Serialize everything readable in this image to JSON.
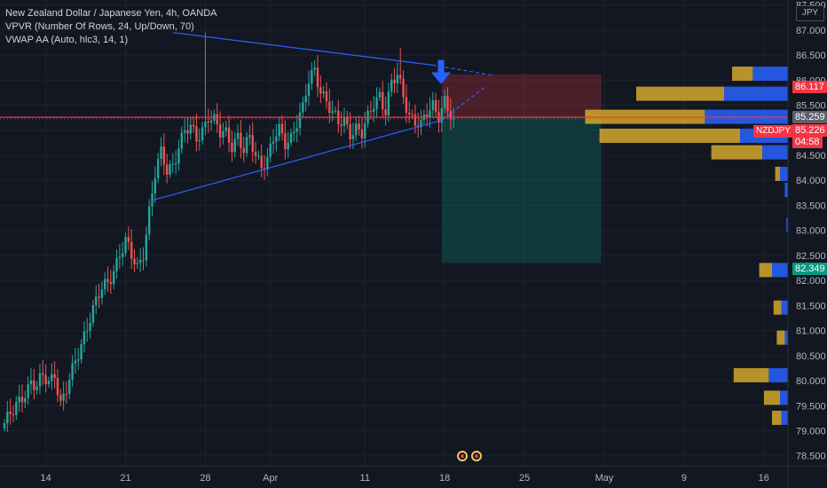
{
  "legend": {
    "title": "New Zealand Dollar / Japanese Yen, 4h, OANDA",
    "vpvr": "VPVR (Number Of Rows, 24, Up/Down, 70)",
    "vwap": "VWAP AA (Auto, hlc3, 14, 1)"
  },
  "currency": "JPY",
  "price_tags": {
    "upper": "86.117",
    "current_line": "85.259",
    "ticker": "NZDJPY",
    "last": "85.226",
    "countdown": "04:58",
    "lower": "82.349"
  },
  "colors": {
    "background": "#131722",
    "up": "#26a69a",
    "down": "#ef5350",
    "trendline": "#2962ff",
    "vp_up": "#2962ff",
    "vp_down": "#d4a82c",
    "stop_zone": "#f23645",
    "target_zone": "#089981"
  },
  "chart_data": {
    "type": "candlestick",
    "symbol": "NZDJPY",
    "interval": "4h",
    "ylim": [
      78.3,
      87.6
    ],
    "y_ticks": [
      78.5,
      79.0,
      79.5,
      80.0,
      80.5,
      81.0,
      81.5,
      82.0,
      82.5,
      83.0,
      83.5,
      84.0,
      84.5,
      85.0,
      85.5,
      86.0,
      86.5,
      87.0,
      87.5
    ],
    "y_tick_labels": [
      "78.500",
      "79.000",
      "79.500",
      "80.000",
      "80.500",
      "81.000",
      "81.500",
      "82.000",
      "82.500",
      "83.000",
      "83.500",
      "84.000",
      "84.500",
      "85.000",
      "85.500",
      "86.000",
      "86.500",
      "87.000",
      "87.500"
    ],
    "x_ticks": [
      "14",
      "21",
      "28",
      "Apr",
      "11",
      "18",
      "25",
      "May",
      "9",
      "16"
    ],
    "x_tick_bar_index": [
      14,
      41,
      68,
      90,
      122,
      149,
      176,
      203,
      230,
      257
    ],
    "close_path": [
      [
        0,
        79.15
      ],
      [
        3,
        79.35
      ],
      [
        6,
        79.7
      ],
      [
        9,
        80.0
      ],
      [
        11,
        79.85
      ],
      [
        13,
        80.05
      ],
      [
        15,
        79.95
      ],
      [
        17,
        80.2
      ],
      [
        19,
        79.55
      ],
      [
        21,
        79.8
      ],
      [
        23,
        80.15
      ],
      [
        25,
        80.55
      ],
      [
        27,
        80.95
      ],
      [
        29,
        81.3
      ],
      [
        31,
        81.55
      ],
      [
        33,
        81.8
      ],
      [
        35,
        81.95
      ],
      [
        37,
        82.25
      ],
      [
        39,
        82.55
      ],
      [
        41,
        82.75
      ],
      [
        43,
        82.45
      ],
      [
        45,
        82.25
      ],
      [
        47,
        82.6
      ],
      [
        49,
        83.4
      ],
      [
        51,
        84.1
      ],
      [
        53,
        84.5
      ],
      [
        55,
        84.2
      ],
      [
        57,
        84.35
      ],
      [
        59,
        84.7
      ],
      [
        61,
        84.95
      ],
      [
        63,
        85.0
      ],
      [
        65,
        84.85
      ],
      [
        67,
        85.05
      ],
      [
        69,
        85.3
      ],
      [
        71,
        85.15
      ],
      [
        73,
        84.9
      ],
      [
        75,
        84.95
      ],
      [
        77,
        84.75
      ],
      [
        79,
        84.9
      ],
      [
        81,
        84.55
      ],
      [
        83,
        84.8
      ],
      [
        85,
        84.5
      ],
      [
        87,
        84.35
      ],
      [
        89,
        84.45
      ],
      [
        91,
        84.8
      ],
      [
        93,
        84.95
      ],
      [
        95,
        84.75
      ],
      [
        97,
        84.9
      ],
      [
        99,
        85.2
      ],
      [
        101,
        85.4
      ],
      [
        103,
        85.95
      ],
      [
        105,
        86.2
      ],
      [
        107,
        85.85
      ],
      [
        109,
        85.6
      ],
      [
        111,
        85.3
      ],
      [
        113,
        85.1
      ],
      [
        115,
        85.2
      ],
      [
        117,
        85.0
      ],
      [
        119,
        85.05
      ],
      [
        121,
        84.9
      ],
      [
        123,
        85.2
      ],
      [
        125,
        85.55
      ],
      [
        127,
        85.75
      ],
      [
        129,
        85.4
      ],
      [
        131,
        85.9
      ],
      [
        133,
        86.05
      ],
      [
        135,
        85.7
      ],
      [
        137,
        85.35
      ],
      [
        139,
        85.2
      ],
      [
        141,
        85.05
      ],
      [
        143,
        85.3
      ],
      [
        145,
        85.5
      ],
      [
        147,
        85.35
      ],
      [
        149,
        85.6
      ],
      [
        151,
        85.25
      ],
      [
        152,
        85.226
      ]
    ],
    "triangle_upper": [
      [
        57,
        86.95
      ],
      [
        145,
        86.3
      ]
    ],
    "triangle_lower": [
      [
        50,
        83.6
      ],
      [
        148,
        85.2
      ]
    ],
    "triangle_apex_lines": [
      [
        [
          145,
          86.3
        ],
        [
          165,
          86.1
        ]
      ],
      [
        [
          148,
          85.2
        ],
        [
          163,
          85.88
        ]
      ]
    ],
    "current_price_line": 85.259,
    "last_price": 85.226,
    "short_position": {
      "entry": 85.259,
      "stop": 86.117,
      "target": 82.349,
      "start_bar": 148,
      "end_bar": 202
    },
    "volume_profile": [
      [
        86.12,
        0.22,
        0.13
      ],
      [
        85.72,
        0.4,
        0.55
      ],
      [
        85.26,
        0.52,
        0.75
      ],
      [
        84.88,
        0.3,
        0.88
      ],
      [
        84.55,
        0.16,
        0.32
      ],
      [
        84.12,
        0.05,
        0.03
      ],
      [
        83.8,
        0.02,
        0.0
      ],
      [
        83.1,
        0.01,
        0.0
      ],
      [
        82.2,
        0.1,
        0.08
      ],
      [
        81.45,
        0.04,
        0.05
      ],
      [
        80.85,
        0.02,
        0.05
      ],
      [
        80.1,
        0.12,
        0.22
      ],
      [
        79.65,
        0.05,
        0.1
      ],
      [
        79.25,
        0.04,
        0.06
      ]
    ]
  }
}
